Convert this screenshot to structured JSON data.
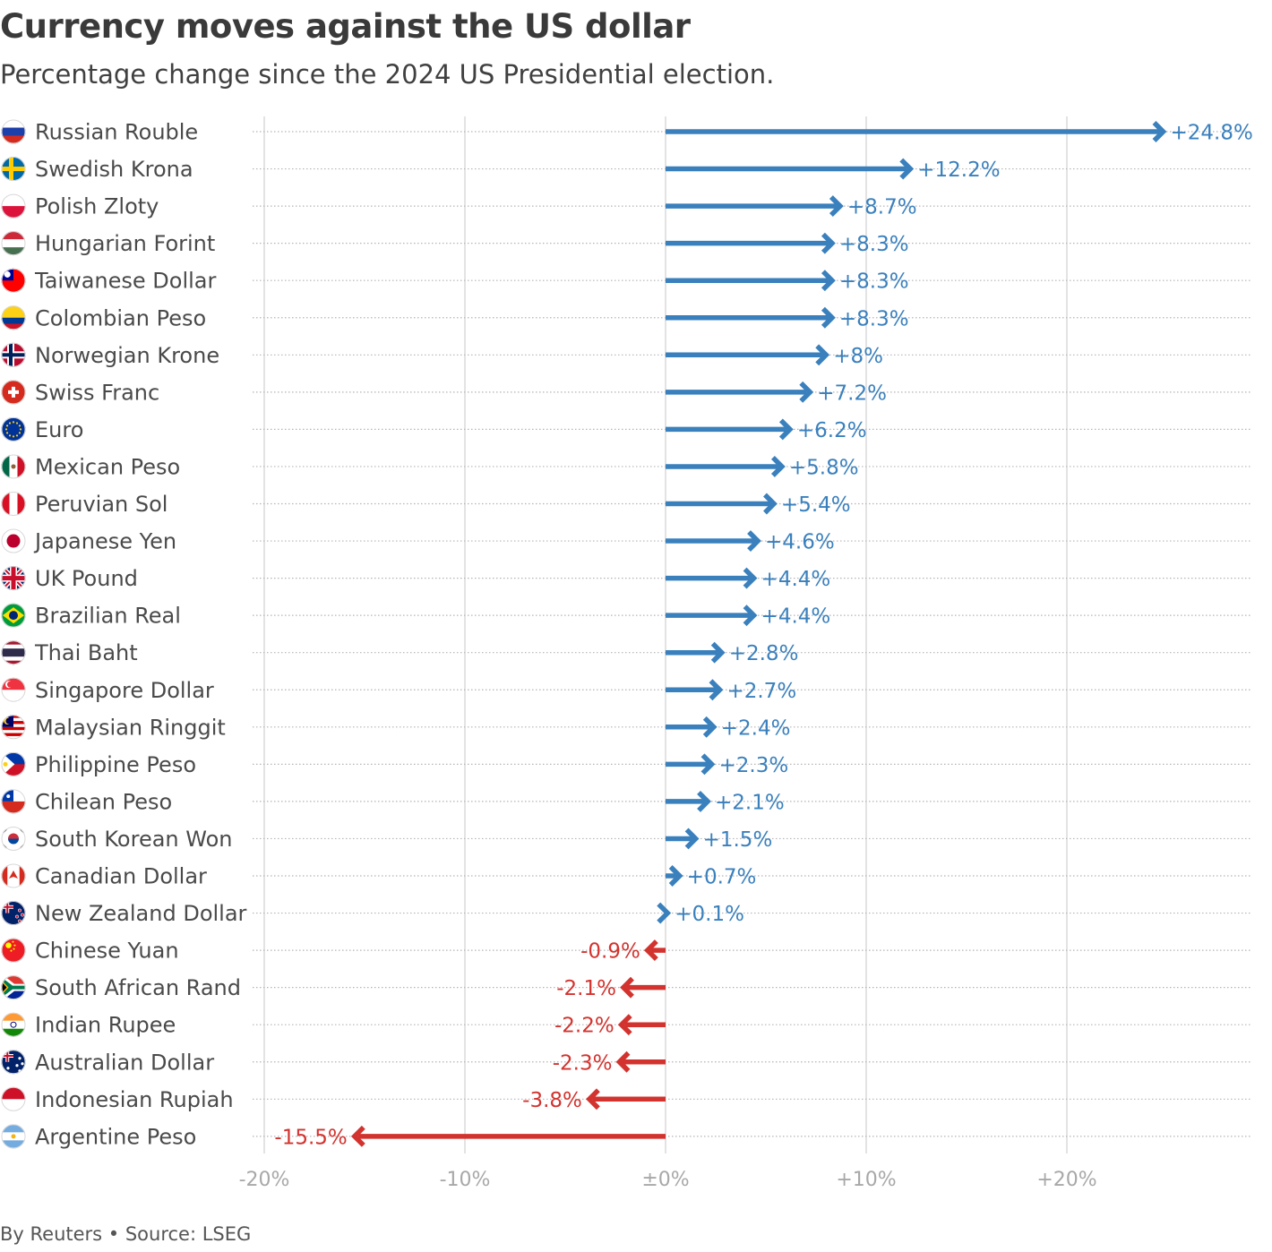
{
  "chart_data": {
    "type": "bar",
    "title": "Currency moves against the US dollar",
    "subtitle": "Percentage change since the 2024 US Presidential election.",
    "xlabel": "",
    "ylabel": "",
    "xlim": [
      -20,
      28
    ],
    "ticks": [
      {
        "value": -20,
        "label": "-20%"
      },
      {
        "value": -10,
        "label": "-10%"
      },
      {
        "value": 0,
        "label": "±0%"
      },
      {
        "value": 10,
        "label": "+10%"
      },
      {
        "value": 20,
        "label": "+20%"
      }
    ],
    "positive_color": "#3a80bd",
    "negative_color": "#d3332e",
    "categories": [
      "Russian Rouble",
      "Swedish Krona",
      "Polish Zloty",
      "Hungarian Forint",
      "Taiwanese Dollar",
      "Colombian Peso",
      "Norwegian Krone",
      "Swiss Franc",
      "Euro",
      "Mexican Peso",
      "Peruvian Sol",
      "Japanese Yen",
      "UK Pound",
      "Brazilian Real",
      "Thai Baht",
      "Singapore Dollar",
      "Malaysian Ringgit",
      "Philippine Peso",
      "Chilean Peso",
      "South Korean Won",
      "Canadian Dollar",
      "New Zealand Dollar",
      "Chinese Yuan",
      "South African Rand",
      "Indian Rupee",
      "Australian Dollar",
      "Indonesian Rupiah",
      "Argentine Peso"
    ],
    "values": [
      24.8,
      12.2,
      8.7,
      8.3,
      8.3,
      8.3,
      8.0,
      7.2,
      6.2,
      5.8,
      5.4,
      4.6,
      4.4,
      4.4,
      2.8,
      2.7,
      2.4,
      2.3,
      2.1,
      1.5,
      0.7,
      0.1,
      -0.9,
      -2.1,
      -2.2,
      -2.3,
      -3.8,
      -15.5
    ],
    "value_labels": [
      "+24.8%",
      "+12.2%",
      "+8.7%",
      "+8.3%",
      "+8.3%",
      "+8.3%",
      "+8%",
      "+7.2%",
      "+6.2%",
      "+5.8%",
      "+5.4%",
      "+4.6%",
      "+4.4%",
      "+4.4%",
      "+2.8%",
      "+2.7%",
      "+2.4%",
      "+2.3%",
      "+2.1%",
      "+1.5%",
      "+0.7%",
      "+0.1%",
      "-0.9%",
      "-2.1%",
      "-2.2%",
      "-2.3%",
      "-3.8%",
      "-15.5%"
    ],
    "flags": [
      "russia-flag-icon",
      "sweden-flag-icon",
      "poland-flag-icon",
      "hungary-flag-icon",
      "taiwan-flag-icon",
      "colombia-flag-icon",
      "norway-flag-icon",
      "switzerland-flag-icon",
      "eu-flag-icon",
      "mexico-flag-icon",
      "peru-flag-icon",
      "japan-flag-icon",
      "uk-flag-icon",
      "brazil-flag-icon",
      "thailand-flag-icon",
      "singapore-flag-icon",
      "malaysia-flag-icon",
      "philippines-flag-icon",
      "chile-flag-icon",
      "south-korea-flag-icon",
      "canada-flag-icon",
      "new-zealand-flag-icon",
      "china-flag-icon",
      "south-africa-flag-icon",
      "india-flag-icon",
      "australia-flag-icon",
      "indonesia-flag-icon",
      "argentina-flag-icon"
    ]
  },
  "footer": {
    "credit": "By Reuters • Source: LSEG"
  }
}
